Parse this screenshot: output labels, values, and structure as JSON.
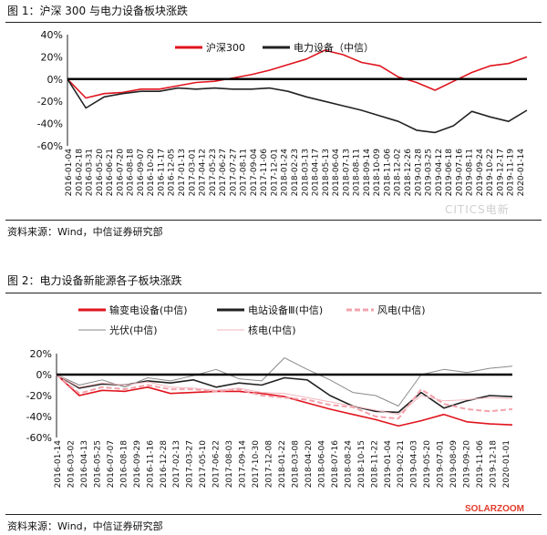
{
  "figures": [
    {
      "title": "图 1：沪深 300 与电力设备板块涨跌",
      "source": "资料来源：Wind，中信证券研究部",
      "watermark": "CITICS电新"
    },
    {
      "title": "图 2：电力设备新能源各子板块涨跌",
      "source": "资料来源：Wind，中信证券研究部",
      "watermark": "SOLARZOOM"
    }
  ],
  "chart_data": [
    {
      "type": "line",
      "title": "",
      "y_tick_labels": [
        "40%",
        "20%",
        "0%",
        "-20%",
        "-40%",
        "-60%"
      ],
      "ylim": [
        -60,
        40
      ],
      "grid": false,
      "zero_line": true,
      "legend_placement": "top-center",
      "x_tick_labels": [
        "2016-01-04",
        "2016-02-18",
        "2016-03-31",
        "2016-05-20",
        "2016-06-21",
        "2016-07-20",
        "2016-08-18",
        "2016-09-07",
        "2016-10-20",
        "2016-11-17",
        "2016-12-05",
        "2017-01-13",
        "2017-03-01",
        "2017-04-12",
        "2017-05-23",
        "2017-06-27",
        "2017-07-27",
        "2017-08-11",
        "2017-09-04",
        "2017-11-06",
        "2017-12-01",
        "2018-01-24",
        "2018-02-23",
        "2018-03-13",
        "2018-04-17",
        "2018-05-13",
        "2018-06-04",
        "2018-07-13",
        "2018-08-11",
        "2018-09-14",
        "2018-10-09",
        "2018-11-06",
        "2018-12-02",
        "2018-12-26",
        "2019-01-28",
        "2019-03-25",
        "2019-04-12",
        "2019-06-18",
        "2019-07-16",
        "2019-08-11",
        "2019-09-24",
        "2019-10-22",
        "2019-12-17",
        "2019-11-19",
        "2020-01-14"
      ],
      "series": [
        {
          "name": "沪深300",
          "color": "#e0141e",
          "x": [
            0,
            4,
            8,
            12,
            16,
            20,
            24,
            28,
            32,
            36,
            40,
            44,
            48,
            52,
            56,
            60,
            64,
            68,
            72,
            76,
            80,
            84,
            88,
            92,
            96,
            100
          ],
          "values": [
            0,
            -17,
            -13,
            -12,
            -9,
            -9,
            -6,
            -3,
            -2,
            1,
            4,
            8,
            13,
            18,
            26,
            22,
            15,
            12,
            2,
            -3,
            -10,
            -2,
            6,
            12,
            14,
            20
          ]
        },
        {
          "name": "电力设备（中信）",
          "color": "#222222",
          "x": [
            0,
            4,
            8,
            12,
            16,
            20,
            24,
            28,
            32,
            36,
            40,
            44,
            48,
            52,
            56,
            60,
            64,
            68,
            72,
            76,
            80,
            84,
            88,
            92,
            96,
            100
          ],
          "values": [
            0,
            -26,
            -16,
            -13,
            -11,
            -11,
            -8,
            -9,
            -8,
            -9,
            -9,
            -8,
            -11,
            -16,
            -20,
            -24,
            -28,
            -33,
            -38,
            -46,
            -48,
            -42,
            -29,
            -34,
            -38,
            -28
          ]
        }
      ]
    },
    {
      "type": "line",
      "title": "",
      "y_tick_labels": [
        "20%",
        "0%",
        "-20%",
        "-40%",
        "-60%"
      ],
      "ylim": [
        -60,
        20
      ],
      "grid": false,
      "zero_line": true,
      "legend_placement": "top",
      "x_tick_labels": [
        "2016-01-14",
        "2016-03-02",
        "2016-04-13",
        "2016-05-25",
        "2016-07-07",
        "2016-08-18",
        "2016-09-29",
        "2016-11-16",
        "2016-12-28",
        "2017-02-13",
        "2017-03-27",
        "2017-05-10",
        "2017-06-22",
        "2017-08-03",
        "2017-09-14",
        "2017-10-30",
        "2017-12-08",
        "2018-01-22",
        "2018-03-08",
        "2018-04-20",
        "2018-06-04",
        "2018-07-16",
        "2018-08-24",
        "2018-10-15",
        "2018-11-22",
        "2019-01-04",
        "2019-02-21",
        "2019-04-03",
        "2019-05-20",
        "2019-07-01",
        "2019-08-09",
        "2019-09-20",
        "2019-11-06",
        "2019-12-18",
        "2020-01-01"
      ],
      "series": [
        {
          "name": "输变电设备(中信)",
          "color": "#e0141e",
          "x": [
            0,
            5,
            10,
            15,
            20,
            25,
            30,
            35,
            40,
            45,
            50,
            55,
            60,
            65,
            70,
            75,
            80,
            85,
            90,
            95,
            100
          ],
          "values": [
            0,
            -20,
            -15,
            -16,
            -12,
            -18,
            -17,
            -16,
            -16,
            -18,
            -21,
            -27,
            -33,
            -38,
            -43,
            -49,
            -44,
            -38,
            -45,
            -47,
            -48
          ]
        },
        {
          "name": "电站设备Ⅲ(中信)",
          "color": "#222222",
          "x": [
            0,
            5,
            10,
            15,
            20,
            25,
            30,
            35,
            40,
            45,
            50,
            55,
            60,
            65,
            70,
            75,
            80,
            85,
            90,
            95,
            100
          ],
          "values": [
            0,
            -13,
            -9,
            -10,
            -6,
            -8,
            -5,
            -12,
            -8,
            -10,
            -3,
            -5,
            -20,
            -30,
            -35,
            -36,
            -17,
            -32,
            -25,
            -20,
            -21
          ]
        },
        {
          "name": "风电(中信)",
          "color": "#f2a3ad",
          "dashed": true,
          "x": [
            0,
            5,
            10,
            15,
            20,
            25,
            30,
            35,
            40,
            45,
            50,
            55,
            60,
            65,
            70,
            75,
            80,
            85,
            90,
            95,
            100
          ],
          "values": [
            0,
            -18,
            -12,
            -14,
            -10,
            -14,
            -14,
            -16,
            -14,
            -20,
            -22,
            -24,
            -29,
            -31,
            -40,
            -42,
            -14,
            -28,
            -33,
            -35,
            -33
          ]
        },
        {
          "name": "光伏(中信)",
          "color": "#8a8a8a",
          "thin": true,
          "x": [
            0,
            5,
            10,
            15,
            20,
            25,
            30,
            35,
            40,
            45,
            50,
            55,
            60,
            65,
            70,
            75,
            80,
            85,
            90,
            95,
            100
          ],
          "values": [
            0,
            -10,
            -5,
            -12,
            -3,
            -6,
            -1,
            5,
            -4,
            -6,
            16,
            5,
            -5,
            -17,
            -20,
            -30,
            0,
            5,
            2,
            6,
            8
          ]
        },
        {
          "name": "核电(中信)",
          "color": "#f0b6bd",
          "thin": true,
          "x": [
            0,
            5,
            10,
            15,
            20,
            25,
            30,
            35,
            40,
            45,
            50,
            55,
            60,
            65,
            70,
            75,
            80,
            85,
            90,
            95,
            100
          ],
          "values": [
            0,
            -12,
            -8,
            -10,
            -7,
            -12,
            -13,
            -15,
            -13,
            -17,
            -18,
            -22,
            -26,
            -30,
            -34,
            -38,
            -20,
            -25,
            -24,
            -22,
            -23
          ]
        }
      ]
    }
  ]
}
